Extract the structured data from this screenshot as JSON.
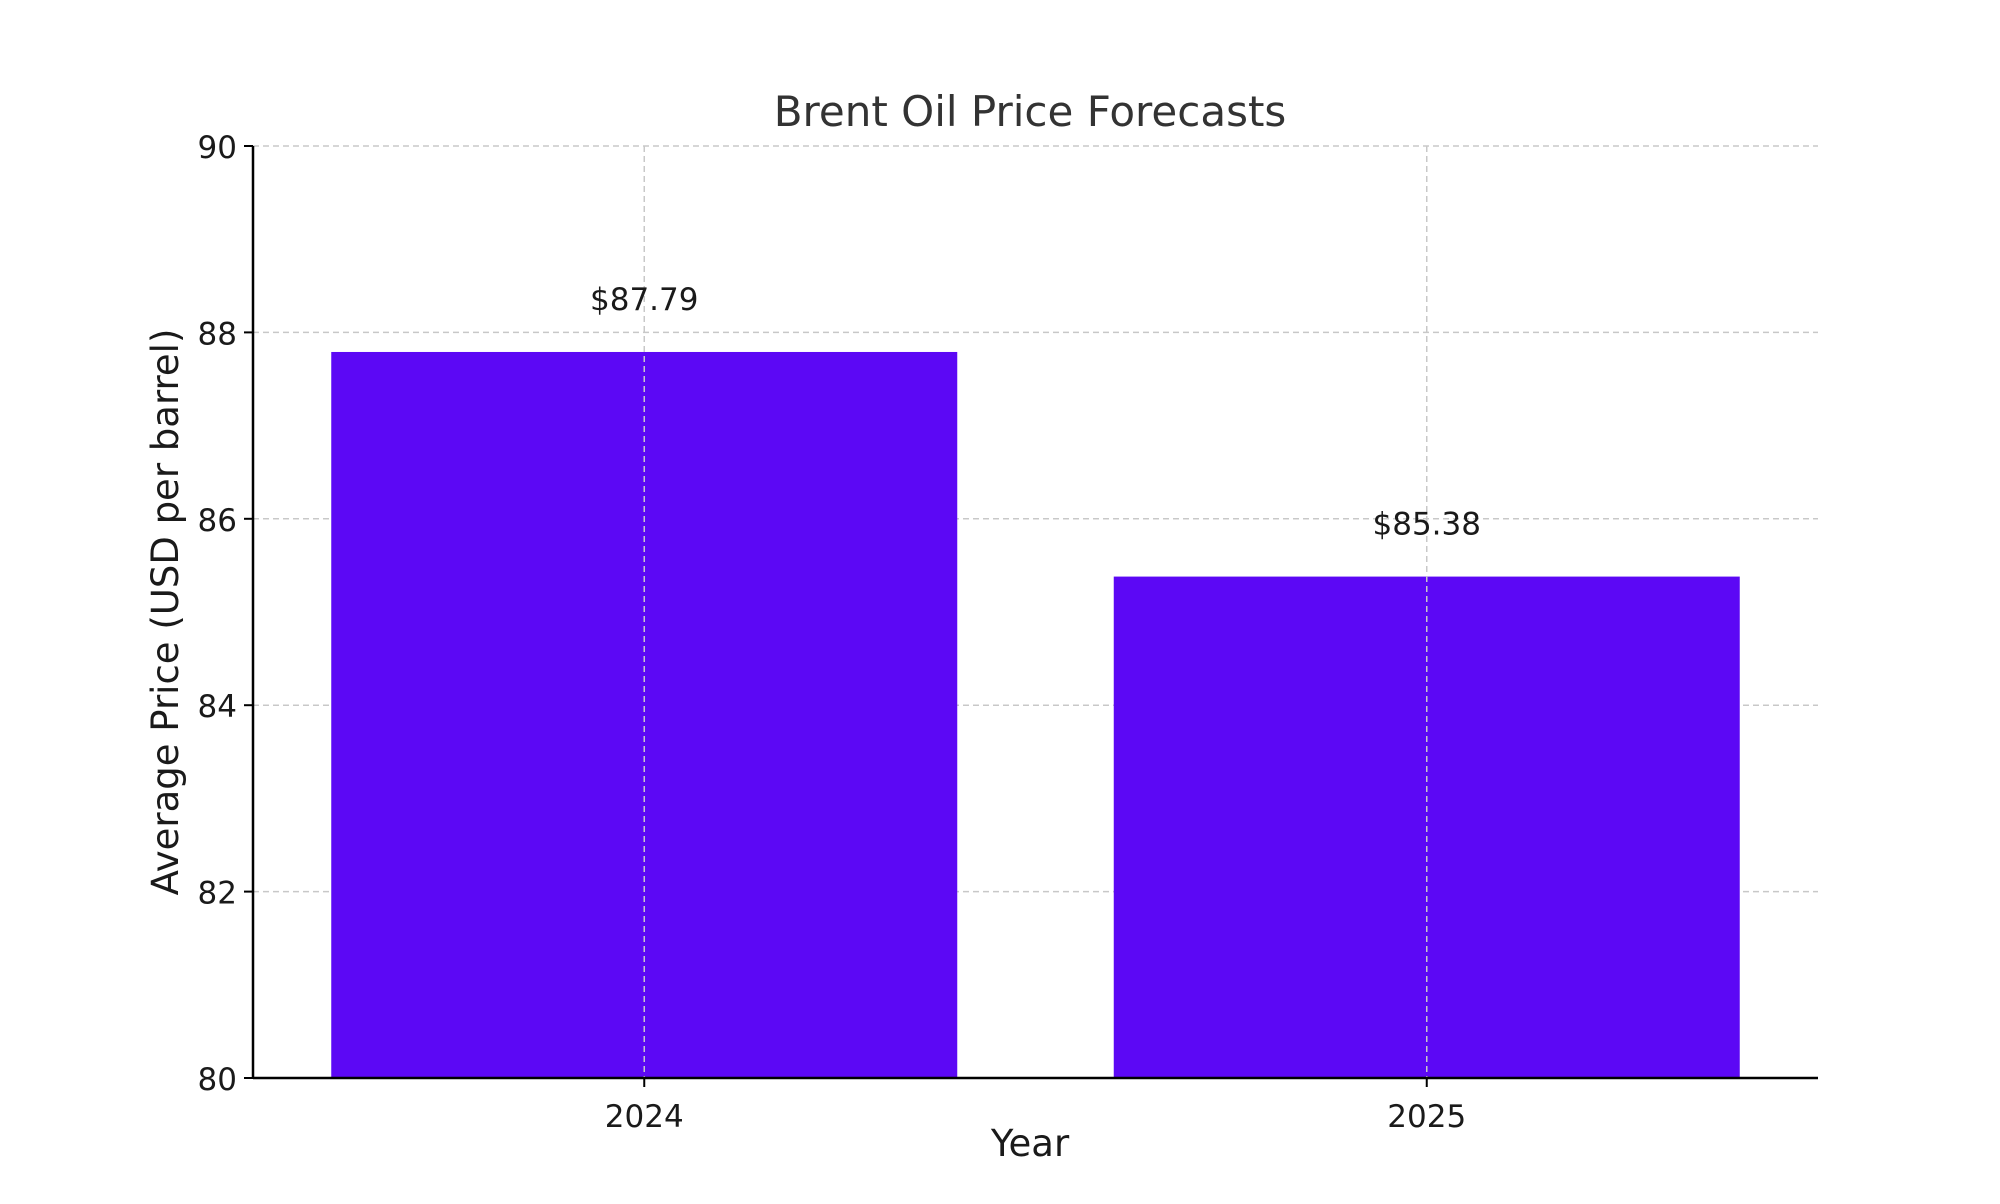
{
  "chart_data": {
    "type": "bar",
    "title": "Brent Oil Price Forecasts",
    "xlabel": "Year",
    "ylabel": "Average Price (USD per barrel)",
    "categories": [
      "2024",
      "2025"
    ],
    "values": [
      87.79,
      85.38
    ],
    "data_labels": [
      "$87.79",
      "$85.38"
    ],
    "ylim": [
      80,
      90
    ],
    "y_ticks": [
      80,
      82,
      84,
      86,
      88,
      90
    ],
    "grid": true,
    "legend": "none",
    "colors": {
      "bar": "#5c08f5",
      "grid": "#c8c8c8",
      "axis": "#000000",
      "title": "#333333",
      "text": "#1a1a1a"
    }
  }
}
